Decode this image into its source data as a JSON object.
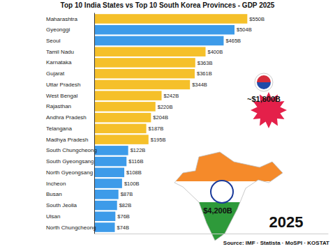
{
  "chart_data": {
    "type": "bar",
    "orientation": "horizontal",
    "title": "Top 10 India States vs Top 10 South Korea Provinces - GDP 2025",
    "categories": [
      "Maharashtra",
      "Gyeonggi",
      "Seoul",
      "Tamil Nadu",
      "Karnataka",
      "Gujarat",
      "Uttar Pradesh",
      "West Bengal",
      "Rajasthan",
      "Andhra Pradesh",
      "Telangana",
      "Madhya Pradesh",
      "South Chungcheong",
      "South Gyeongsang",
      "North Gyeongsang",
      "Incheon",
      "Busan",
      "South Jeolla",
      "Ulsan",
      "North Chungcheong"
    ],
    "values": [
      550,
      504,
      465,
      400,
      363,
      361,
      344,
      242,
      220,
      204,
      187,
      195,
      122,
      116,
      108,
      100,
      87,
      82,
      76,
      74
    ],
    "value_labels": [
      "$550B",
      "$504B",
      "$465B",
      "$400B",
      "$363B",
      "$361B",
      "$344B",
      "$242B",
      "$220B",
      "$204B",
      "$187B",
      "$195B",
      "$122B",
      "$116B",
      "$108B",
      "$100B",
      "$87B",
      "$82B",
      "$76B",
      "$74B"
    ],
    "colors": [
      "#f5c02a",
      "#3d9be9",
      "#3d9be9",
      "#f5c02a",
      "#f5c02a",
      "#f5c02a",
      "#f5c02a",
      "#f5c02a",
      "#f5c02a",
      "#f5c02a",
      "#f5c02a",
      "#f5c02a",
      "#3d9be9",
      "#3d9be9",
      "#3d9be9",
      "#3d9be9",
      "#3d9be9",
      "#3d9be9",
      "#3d9be9",
      "#3d9be9"
    ],
    "xlim": [
      0,
      840
    ],
    "data_labels": true,
    "tick_labels": "y",
    "grid": false,
    "annotations": [
      "~$1,800B",
      "$4,200B",
      "2025",
      "Source: IMF · Statista · MoSPI · KOSTAT"
    ]
  }
}
